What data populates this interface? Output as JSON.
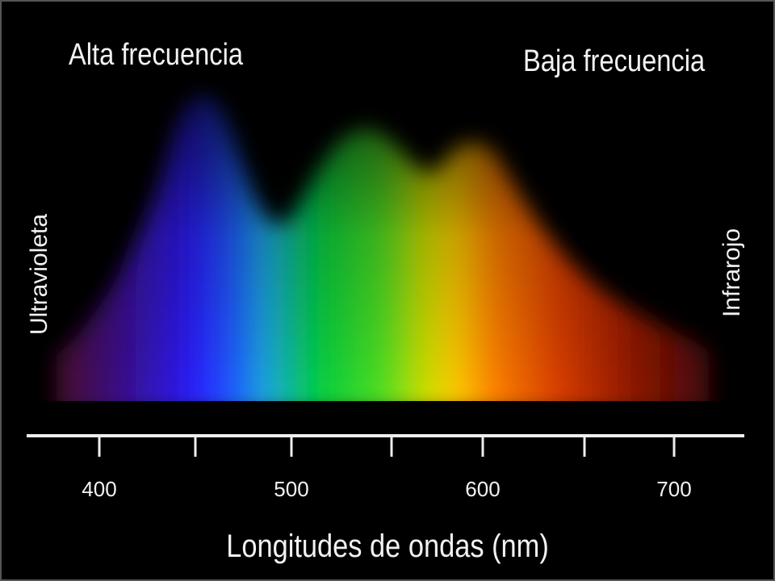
{
  "header": {
    "left": "Alta frecuencia",
    "right": "Baja frecuencia"
  },
  "side_labels": {
    "left": "Ultravioleta",
    "right": "Infrarojo"
  },
  "axis": {
    "ticks": [
      "400",
      "500",
      "600",
      "700"
    ],
    "title": "Longitudes de ondas (nm)"
  }
}
